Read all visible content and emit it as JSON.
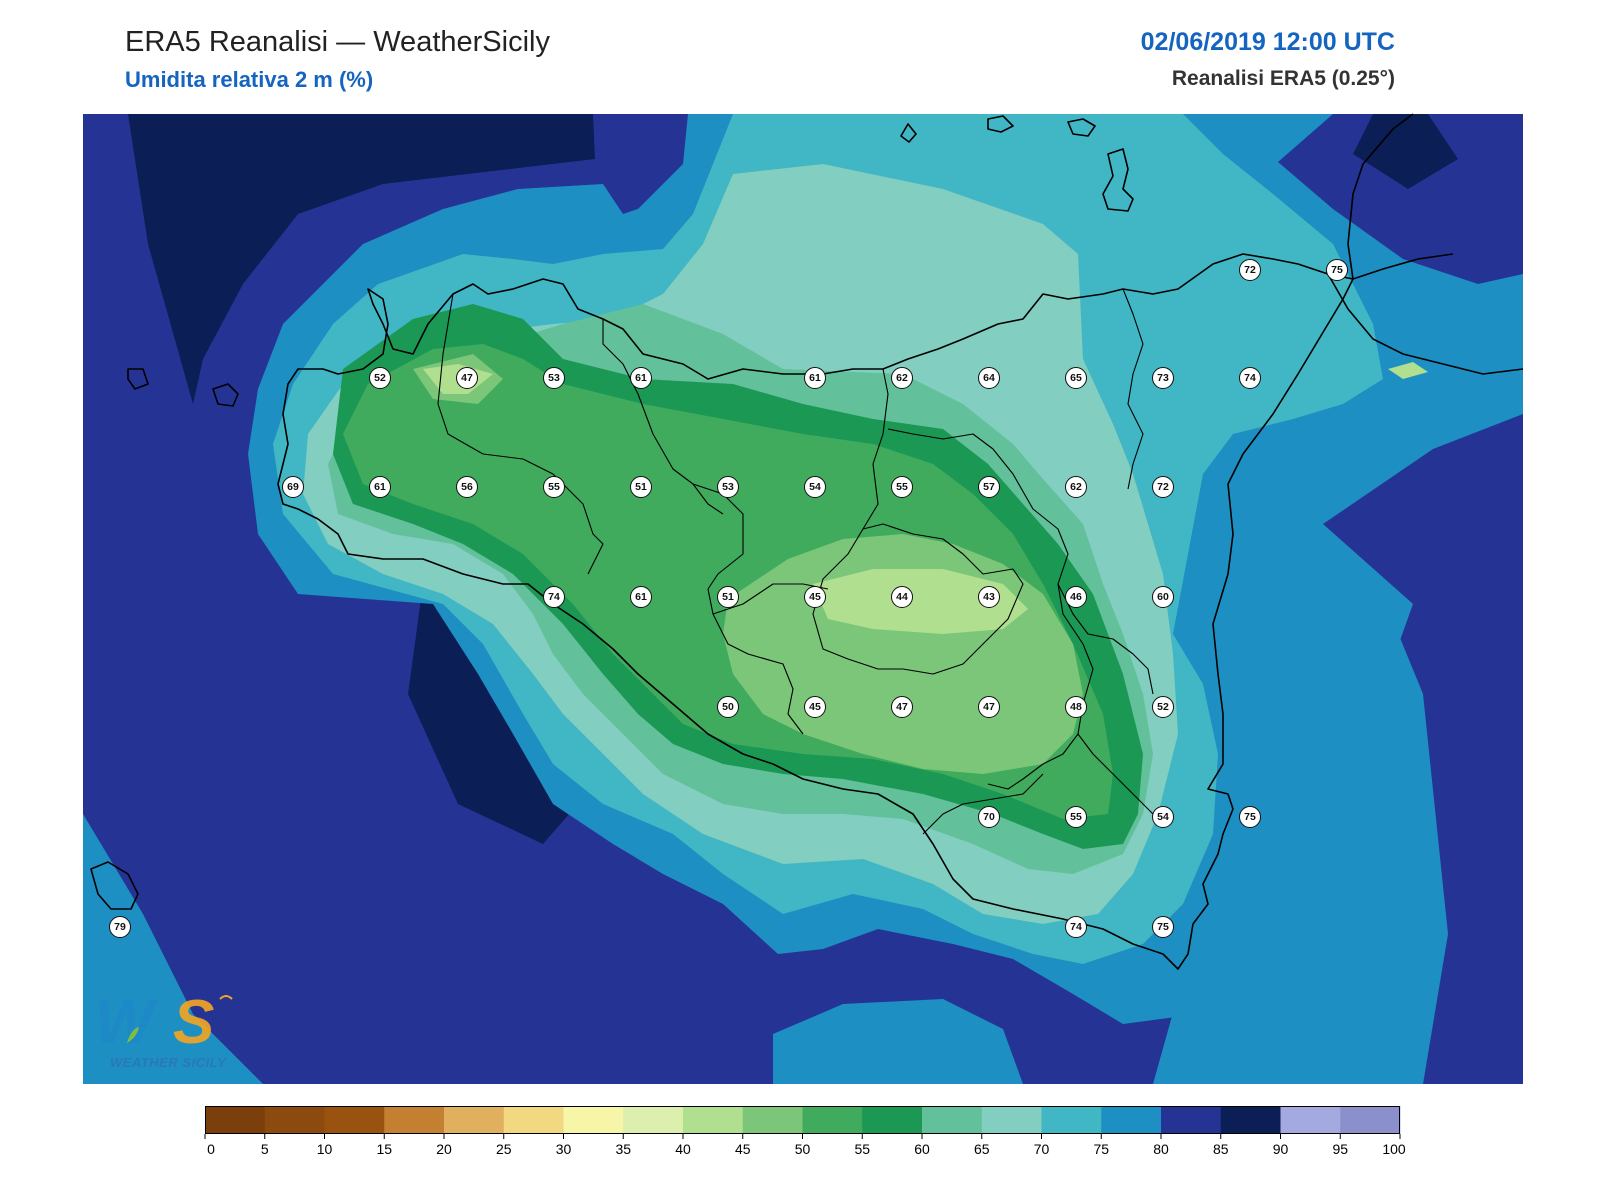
{
  "header": {
    "title": "ERA5 Reanalisi — WeatherSicily",
    "subtitle": "Umidita relativa 2 m (%)",
    "datetime": "02/06/2019 12:00 UTC",
    "source": "Reanalisi ERA5 (0.25°)"
  },
  "colorbar": {
    "ticks": [
      "0",
      "5",
      "10",
      "15",
      "20",
      "25",
      "30",
      "35",
      "40",
      "45",
      "50",
      "55",
      "60",
      "65",
      "70",
      "75",
      "80",
      "85",
      "90",
      "95",
      "100"
    ],
    "colors": [
      "#7a3f0a",
      "#8c4a0e",
      "#9a520f",
      "#c28030",
      "#e0b05e",
      "#f2d880",
      "#f7f5a8",
      "#dcefad",
      "#b0df90",
      "#7cc67a",
      "#41ab5d",
      "#1c9855",
      "#62c09a",
      "#82cec0",
      "#41b6c4",
      "#1d8fc2",
      "#253494",
      "#0b1e55",
      "#a4aadf",
      "#8b8fcc"
    ]
  },
  "stations": [
    {
      "value": "52"
    },
    {
      "value": "47"
    },
    {
      "value": "53"
    },
    {
      "value": "61"
    },
    {
      "value": "61"
    },
    {
      "value": "62"
    },
    {
      "value": "64"
    },
    {
      "value": "65"
    },
    {
      "value": "73"
    },
    {
      "value": "74"
    },
    {
      "value": "72"
    },
    {
      "value": "75"
    },
    {
      "value": "69"
    },
    {
      "value": "61"
    },
    {
      "value": "56"
    },
    {
      "value": "55"
    },
    {
      "value": "51"
    },
    {
      "value": "53"
    },
    {
      "value": "54"
    },
    {
      "value": "55"
    },
    {
      "value": "57"
    },
    {
      "value": "62"
    },
    {
      "value": "72"
    },
    {
      "value": "74"
    },
    {
      "value": "61"
    },
    {
      "value": "51"
    },
    {
      "value": "45"
    },
    {
      "value": "44"
    },
    {
      "value": "43"
    },
    {
      "value": "46"
    },
    {
      "value": "60"
    },
    {
      "value": "50"
    },
    {
      "value": "45"
    },
    {
      "value": "47"
    },
    {
      "value": "47"
    },
    {
      "value": "48"
    },
    {
      "value": "52"
    },
    {
      "value": "70"
    },
    {
      "value": "55"
    },
    {
      "value": "54"
    },
    {
      "value": "75"
    },
    {
      "value": "79"
    },
    {
      "value": "74"
    },
    {
      "value": "75"
    }
  ],
  "logo": {
    "text": "WEATHER SICILY"
  }
}
